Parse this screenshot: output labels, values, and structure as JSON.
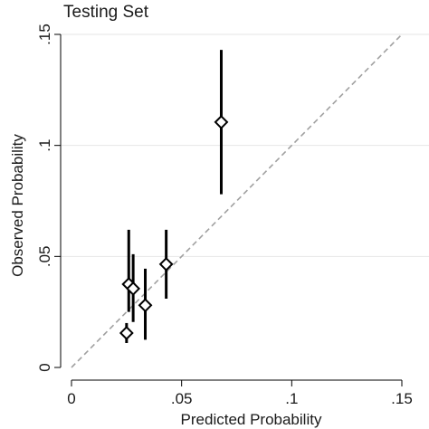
{
  "chart_data": {
    "type": "scatter",
    "title": "Testing Set",
    "xlabel": "Predicted Probability",
    "ylabel": "Observed Probability",
    "xlim": [
      0,
      0.15
    ],
    "ylim": [
      0,
      0.15
    ],
    "x_ticks": [
      0,
      0.05,
      0.1,
      0.15
    ],
    "x_tick_labels": [
      "0",
      ".05",
      ".1",
      ".15"
    ],
    "y_ticks": [
      0,
      0.05,
      0.1,
      0.15
    ],
    "y_tick_labels": [
      "0",
      ".05",
      ".1",
      ".15"
    ],
    "grid": true,
    "reference_line": {
      "style": "dashed",
      "from": [
        0,
        0
      ],
      "to": [
        0.15,
        0.15
      ]
    },
    "marker": "hollow-diamond",
    "points": [
      {
        "x": 0.025,
        "y": 0.0155,
        "y_low": 0.011,
        "y_high": 0.02
      },
      {
        "x": 0.026,
        "y": 0.0375,
        "y_low": 0.025,
        "y_high": 0.062
      },
      {
        "x": 0.028,
        "y": 0.0355,
        "y_low": 0.0205,
        "y_high": 0.051
      },
      {
        "x": 0.0335,
        "y": 0.028,
        "y_low": 0.0125,
        "y_high": 0.0445
      },
      {
        "x": 0.043,
        "y": 0.0465,
        "y_low": 0.031,
        "y_high": 0.062
      },
      {
        "x": 0.068,
        "y": 0.1105,
        "y_low": 0.078,
        "y_high": 0.143
      }
    ]
  },
  "colors": {
    "marker": "#000000",
    "reference_line": "#a0a0a0",
    "grid": "#e6e6e6",
    "axis": "#000000"
  }
}
